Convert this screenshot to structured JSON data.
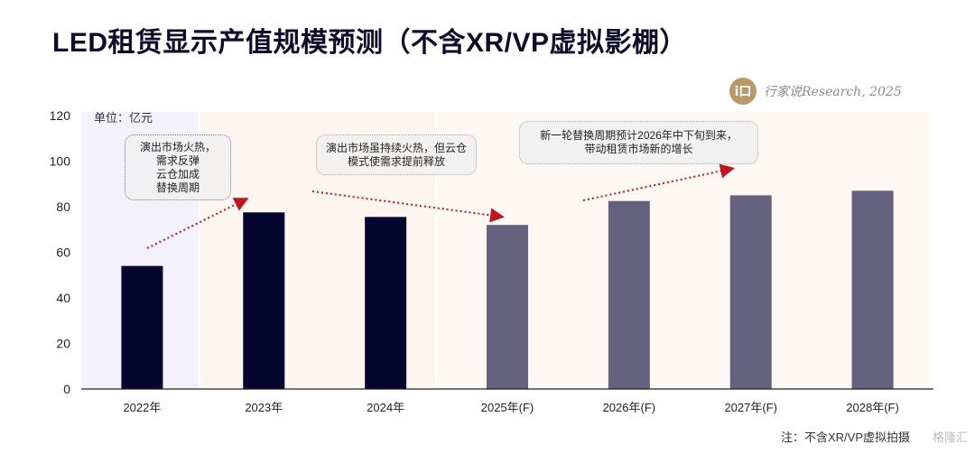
{
  "page": {
    "title": "LED租赁显示产值规模预测（不含XR/VP虚拟影棚）",
    "logo_mark": "i口",
    "logo_text": "行家说Research, 2025",
    "note": "注：不含XR/VP虚拟拍摄",
    "watermark": "格隆汇"
  },
  "chart_data": {
    "type": "bar",
    "unit_label": "单位：亿元",
    "categories": [
      "2022年",
      "2023年",
      "2024年",
      "2025年(F)",
      "2026年(F)",
      "2027年(F)",
      "2028年(F)"
    ],
    "values": [
      54,
      77.5,
      75.5,
      72,
      82.5,
      85,
      87
    ],
    "bar_colors": [
      "#050530",
      "#050530",
      "#050530",
      "#65627f",
      "#65627f",
      "#65627f",
      "#65627f"
    ],
    "ylim": [
      0,
      120
    ],
    "yticks": [
      0,
      20,
      40,
      60,
      80,
      100,
      120
    ],
    "grid": false,
    "annotations": [
      {
        "text": "演出市场火热，\n需求反弹\n云仓加成\n替换周期"
      },
      {
        "text": "演出市场虽持续火热，但云仓\n模式使需求提前释放"
      },
      {
        "text": "新一轮替换周期预计2026年中下旬到来，\n带动租赁市场新的增长"
      }
    ],
    "colors": {
      "actual": "#050530",
      "forecast": "#65627f",
      "arrow": "#c0141e"
    }
  }
}
